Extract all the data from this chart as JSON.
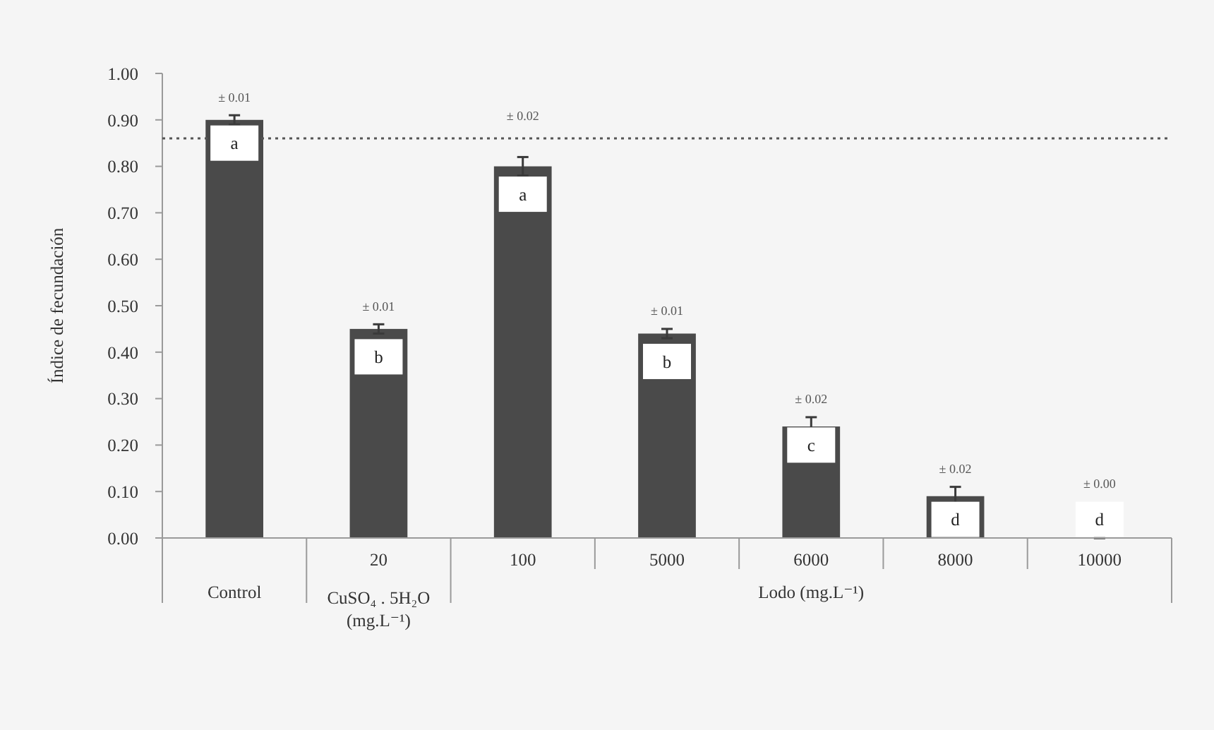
{
  "chart_data": {
    "type": "bar",
    "ylabel": "Índice de fecundación",
    "categories": [
      null,
      "20",
      "100",
      "5000",
      "6000",
      "8000",
      "10000"
    ],
    "values": [
      0.9,
      0.45,
      0.8,
      0.44,
      0.24,
      0.09,
      0.0
    ],
    "color": "#4a4a4a",
    "errors": [
      0.01,
      0.01,
      0.02,
      0.01,
      0.02,
      0.02,
      0.0
    ],
    "ylim": [
      0,
      1
    ],
    "yticks": [
      {
        "value": 0,
        "label": "0.00"
      },
      {
        "value": 0.1,
        "label": "0.10"
      },
      {
        "value": 0.2,
        "label": "0.20"
      },
      {
        "value": 0.3,
        "label": "0.30"
      },
      {
        "value": 0.4,
        "label": "0.40"
      },
      {
        "value": 0.5,
        "label": "0.50"
      },
      {
        "value": 0.6,
        "label": "0.60"
      },
      {
        "value": 0.7,
        "label": "0.70"
      },
      {
        "value": 0.8,
        "label": "0.80"
      },
      {
        "value": 0.9,
        "label": "0.90"
      },
      {
        "value": 1,
        "label": "1.00"
      }
    ],
    "ref_lines": [
      {
        "axis": "y",
        "value": 0.86,
        "color": "#555555",
        "line_style": "dotted"
      }
    ],
    "annotations": [
      "Control",
      "CuSO₄ . 5H₂O (mg.L⁻¹)",
      "Lodo (mg.L⁻¹)",
      "± 0.00",
      {
        "text": "± 0.01",
        "y": 0.91
      },
      {
        "text": "± 0.01",
        "x": "20",
        "y": 0.46
      },
      {
        "text": "± 0.02",
        "x": "100",
        "y": 0.82
      },
      {
        "text": "± 0.01",
        "x": "5000",
        "y": 0.45
      },
      {
        "text": "± 0.02",
        "x": "6000",
        "y": 0.26
      },
      {
        "text": "± 0.02",
        "x": "8000",
        "y": 0.11
      },
      {
        "text": "a",
        "y": 0.85
      },
      {
        "text": "b",
        "x": "20",
        "y": 0.39
      },
      {
        "text": "a",
        "x": "100",
        "y": 0.74
      },
      {
        "text": "b",
        "x": "5000",
        "y": 0.38
      },
      {
        "text": "c",
        "x": "6000",
        "y": 0.2
      },
      {
        "text": "d",
        "x": "8000",
        "y": 0.04
      },
      {
        "text": "d",
        "x": "10000",
        "y": 0.04
      }
    ]
  }
}
